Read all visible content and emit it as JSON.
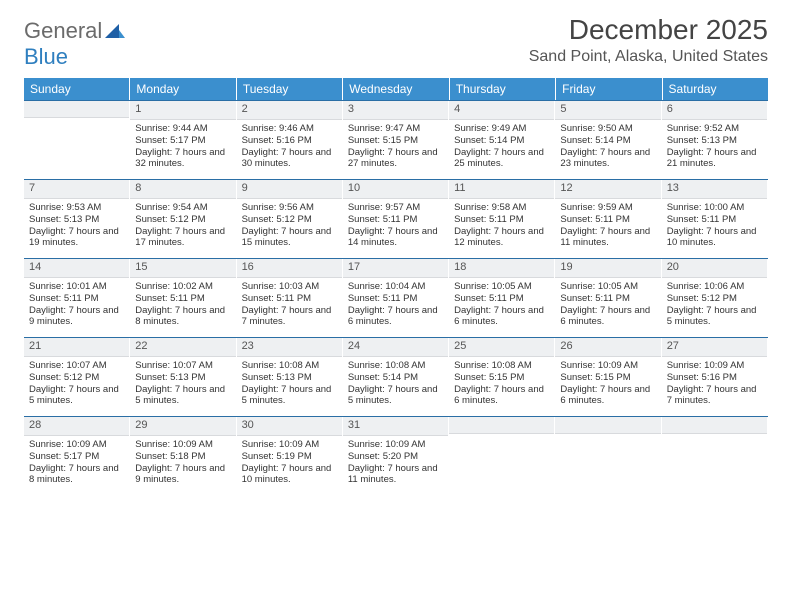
{
  "logo": {
    "part1": "General",
    "part2": "Blue"
  },
  "title": "December 2025",
  "location": "Sand Point, Alaska, United States",
  "weekdays": [
    "Sunday",
    "Monday",
    "Tuesday",
    "Wednesday",
    "Thursday",
    "Friday",
    "Saturday"
  ],
  "colors": {
    "header_bg": "#3b8fce",
    "header_text": "#ffffff",
    "row_divider": "#2a6ea5",
    "daynum_bg": "#eef0f2",
    "logo_gray": "#6b6b6b",
    "logo_blue": "#2f7fbf"
  },
  "weeks": [
    [
      {
        "n": "",
        "sunrise": "",
        "sunset": "",
        "daylight": ""
      },
      {
        "n": "1",
        "sunrise": "Sunrise: 9:44 AM",
        "sunset": "Sunset: 5:17 PM",
        "daylight": "Daylight: 7 hours and 32 minutes."
      },
      {
        "n": "2",
        "sunrise": "Sunrise: 9:46 AM",
        "sunset": "Sunset: 5:16 PM",
        "daylight": "Daylight: 7 hours and 30 minutes."
      },
      {
        "n": "3",
        "sunrise": "Sunrise: 9:47 AM",
        "sunset": "Sunset: 5:15 PM",
        "daylight": "Daylight: 7 hours and 27 minutes."
      },
      {
        "n": "4",
        "sunrise": "Sunrise: 9:49 AM",
        "sunset": "Sunset: 5:14 PM",
        "daylight": "Daylight: 7 hours and 25 minutes."
      },
      {
        "n": "5",
        "sunrise": "Sunrise: 9:50 AM",
        "sunset": "Sunset: 5:14 PM",
        "daylight": "Daylight: 7 hours and 23 minutes."
      },
      {
        "n": "6",
        "sunrise": "Sunrise: 9:52 AM",
        "sunset": "Sunset: 5:13 PM",
        "daylight": "Daylight: 7 hours and 21 minutes."
      }
    ],
    [
      {
        "n": "7",
        "sunrise": "Sunrise: 9:53 AM",
        "sunset": "Sunset: 5:13 PM",
        "daylight": "Daylight: 7 hours and 19 minutes."
      },
      {
        "n": "8",
        "sunrise": "Sunrise: 9:54 AM",
        "sunset": "Sunset: 5:12 PM",
        "daylight": "Daylight: 7 hours and 17 minutes."
      },
      {
        "n": "9",
        "sunrise": "Sunrise: 9:56 AM",
        "sunset": "Sunset: 5:12 PM",
        "daylight": "Daylight: 7 hours and 15 minutes."
      },
      {
        "n": "10",
        "sunrise": "Sunrise: 9:57 AM",
        "sunset": "Sunset: 5:11 PM",
        "daylight": "Daylight: 7 hours and 14 minutes."
      },
      {
        "n": "11",
        "sunrise": "Sunrise: 9:58 AM",
        "sunset": "Sunset: 5:11 PM",
        "daylight": "Daylight: 7 hours and 12 minutes."
      },
      {
        "n": "12",
        "sunrise": "Sunrise: 9:59 AM",
        "sunset": "Sunset: 5:11 PM",
        "daylight": "Daylight: 7 hours and 11 minutes."
      },
      {
        "n": "13",
        "sunrise": "Sunrise: 10:00 AM",
        "sunset": "Sunset: 5:11 PM",
        "daylight": "Daylight: 7 hours and 10 minutes."
      }
    ],
    [
      {
        "n": "14",
        "sunrise": "Sunrise: 10:01 AM",
        "sunset": "Sunset: 5:11 PM",
        "daylight": "Daylight: 7 hours and 9 minutes."
      },
      {
        "n": "15",
        "sunrise": "Sunrise: 10:02 AM",
        "sunset": "Sunset: 5:11 PM",
        "daylight": "Daylight: 7 hours and 8 minutes."
      },
      {
        "n": "16",
        "sunrise": "Sunrise: 10:03 AM",
        "sunset": "Sunset: 5:11 PM",
        "daylight": "Daylight: 7 hours and 7 minutes."
      },
      {
        "n": "17",
        "sunrise": "Sunrise: 10:04 AM",
        "sunset": "Sunset: 5:11 PM",
        "daylight": "Daylight: 7 hours and 6 minutes."
      },
      {
        "n": "18",
        "sunrise": "Sunrise: 10:05 AM",
        "sunset": "Sunset: 5:11 PM",
        "daylight": "Daylight: 7 hours and 6 minutes."
      },
      {
        "n": "19",
        "sunrise": "Sunrise: 10:05 AM",
        "sunset": "Sunset: 5:11 PM",
        "daylight": "Daylight: 7 hours and 6 minutes."
      },
      {
        "n": "20",
        "sunrise": "Sunrise: 10:06 AM",
        "sunset": "Sunset: 5:12 PM",
        "daylight": "Daylight: 7 hours and 5 minutes."
      }
    ],
    [
      {
        "n": "21",
        "sunrise": "Sunrise: 10:07 AM",
        "sunset": "Sunset: 5:12 PM",
        "daylight": "Daylight: 7 hours and 5 minutes."
      },
      {
        "n": "22",
        "sunrise": "Sunrise: 10:07 AM",
        "sunset": "Sunset: 5:13 PM",
        "daylight": "Daylight: 7 hours and 5 minutes."
      },
      {
        "n": "23",
        "sunrise": "Sunrise: 10:08 AM",
        "sunset": "Sunset: 5:13 PM",
        "daylight": "Daylight: 7 hours and 5 minutes."
      },
      {
        "n": "24",
        "sunrise": "Sunrise: 10:08 AM",
        "sunset": "Sunset: 5:14 PM",
        "daylight": "Daylight: 7 hours and 5 minutes."
      },
      {
        "n": "25",
        "sunrise": "Sunrise: 10:08 AM",
        "sunset": "Sunset: 5:15 PM",
        "daylight": "Daylight: 7 hours and 6 minutes."
      },
      {
        "n": "26",
        "sunrise": "Sunrise: 10:09 AM",
        "sunset": "Sunset: 5:15 PM",
        "daylight": "Daylight: 7 hours and 6 minutes."
      },
      {
        "n": "27",
        "sunrise": "Sunrise: 10:09 AM",
        "sunset": "Sunset: 5:16 PM",
        "daylight": "Daylight: 7 hours and 7 minutes."
      }
    ],
    [
      {
        "n": "28",
        "sunrise": "Sunrise: 10:09 AM",
        "sunset": "Sunset: 5:17 PM",
        "daylight": "Daylight: 7 hours and 8 minutes."
      },
      {
        "n": "29",
        "sunrise": "Sunrise: 10:09 AM",
        "sunset": "Sunset: 5:18 PM",
        "daylight": "Daylight: 7 hours and 9 minutes."
      },
      {
        "n": "30",
        "sunrise": "Sunrise: 10:09 AM",
        "sunset": "Sunset: 5:19 PM",
        "daylight": "Daylight: 7 hours and 10 minutes."
      },
      {
        "n": "31",
        "sunrise": "Sunrise: 10:09 AM",
        "sunset": "Sunset: 5:20 PM",
        "daylight": "Daylight: 7 hours and 11 minutes."
      },
      {
        "n": "",
        "sunrise": "",
        "sunset": "",
        "daylight": ""
      },
      {
        "n": "",
        "sunrise": "",
        "sunset": "",
        "daylight": ""
      },
      {
        "n": "",
        "sunrise": "",
        "sunset": "",
        "daylight": ""
      }
    ]
  ]
}
